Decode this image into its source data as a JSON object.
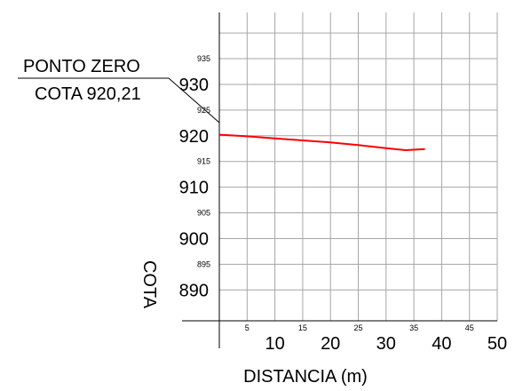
{
  "chart_data": {
    "type": "line",
    "xlabel": "DISTANCIA (m)",
    "ylabel": "COTA",
    "xlim": [
      0,
      50
    ],
    "ylim": [
      884,
      944
    ],
    "grid": true,
    "x_major_ticks": [
      "10",
      "20",
      "30",
      "40",
      "50"
    ],
    "x_minor_ticks": [
      "5",
      "15",
      "25",
      "35",
      "45"
    ],
    "y_major_ticks": [
      "890",
      "900",
      "910",
      "920",
      "930"
    ],
    "y_minor_ticks": [
      "895",
      "905",
      "915",
      "925",
      "935"
    ],
    "series": [
      {
        "color": "#ff0000",
        "x": [
          0,
          5,
          10,
          15,
          20,
          25,
          30,
          33.5,
          37
        ],
        "y": [
          920.2,
          919.9,
          919.5,
          919.1,
          918.7,
          918.2,
          917.6,
          917.2,
          917.4
        ]
      }
    ],
    "annotation": {
      "line1": "PONTO ZERO",
      "line2": "COTA 920,21"
    }
  }
}
